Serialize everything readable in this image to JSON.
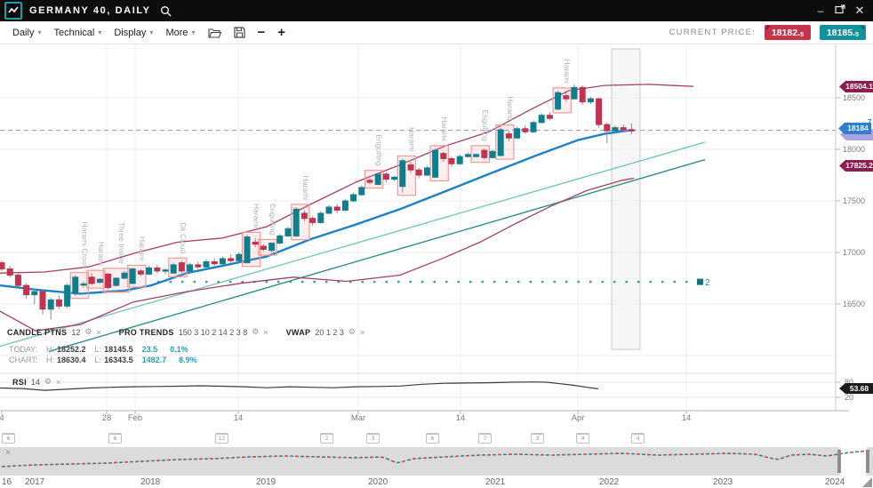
{
  "titlebar": {
    "title": "GERMANY 40, DAILY"
  },
  "toolbar": {
    "menus": [
      "Daily",
      "Technical",
      "Display",
      "More"
    ],
    "zoom_out": "−",
    "zoom_in": "+",
    "current_price_label": "CURRENT PRICE:",
    "sell": {
      "main": "18182.",
      "frac": "5"
    },
    "buy": {
      "main": "18185.",
      "frac": "5"
    }
  },
  "icons": {
    "gear": "⚙",
    "close": "×",
    "caret": "▾"
  },
  "indicators": [
    {
      "name": "CANDLE PTNS",
      "params": "12"
    },
    {
      "name": "PRO TRENDS",
      "params": "150 3 10 2 14 2 3 8"
    },
    {
      "name": "VWAP",
      "params": "20 1 2 3"
    }
  ],
  "stats": {
    "today_label": "TODAY:",
    "chart_label": "CHART:",
    "h_label": "H:",
    "l_label": "L:",
    "today": {
      "high": "18252.2",
      "low": "18145.5",
      "change": "23.5",
      "pct": "0.1%"
    },
    "chart": {
      "high": "18630.4",
      "low": "16343.5",
      "change": "1482.7",
      "pct": "8.9%"
    }
  },
  "rsi_panel": {
    "name": "RSI",
    "params": "14",
    "value_tag": "53.68",
    "levels": [
      "80",
      "20"
    ]
  },
  "price_tags": {
    "upper_band": "18504.1",
    "current": "18184",
    "current_frac": "7",
    "lower_band": "17825.2"
  },
  "chart_data": {
    "type": "candlestick",
    "symbol": "GERMANY 40",
    "timeframe": "DAILY",
    "price_axis": {
      "ticks": [
        18500,
        18000,
        17500,
        17000,
        16500
      ],
      "current_price_line": 18184.7
    },
    "x_ticks": [
      {
        "label": "4",
        "x": 2,
        "grid": false
      },
      {
        "label": "28",
        "x": 120,
        "grid": true
      },
      {
        "label": "Feb",
        "x": 152,
        "grid": true
      },
      {
        "label": "14",
        "x": 268,
        "grid": true
      },
      {
        "label": "Mar",
        "x": 403,
        "grid": true
      },
      {
        "label": "14",
        "x": 518,
        "grid": true
      },
      {
        "label": "Apr",
        "x": 650,
        "grid": true
      },
      {
        "label": "14",
        "x": 772,
        "grid": true
      }
    ],
    "candles": [
      [
        16900,
        16920,
        16820,
        16840
      ],
      [
        16840,
        16870,
        16760,
        16780
      ],
      [
        16780,
        16800,
        16660,
        16680
      ],
      [
        16680,
        16700,
        16550,
        16590
      ],
      [
        16590,
        16650,
        16500,
        16620
      ],
      [
        16620,
        16640,
        16400,
        16450
      ],
      [
        16450,
        16560,
        16350,
        16540
      ],
      [
        16540,
        16580,
        16450,
        16480
      ],
      [
        16480,
        16700,
        16460,
        16680
      ],
      [
        16600,
        16780,
        16580,
        16760
      ],
      [
        16690,
        16720,
        16660,
        16695
      ],
      [
        16760,
        16800,
        16680,
        16700
      ],
      [
        16710,
        16750,
        16700,
        16740
      ],
      [
        16790,
        16800,
        16640,
        16660
      ],
      [
        16680,
        16760,
        16670,
        16750
      ],
      [
        16750,
        16820,
        16740,
        16800
      ],
      [
        16700,
        16850,
        16690,
        16840
      ],
      [
        16820,
        16840,
        16770,
        16790
      ],
      [
        16790,
        16870,
        16780,
        16850
      ],
      [
        16850,
        16880,
        16800,
        16820
      ],
      [
        16820,
        16850,
        16790,
        16830
      ],
      [
        16800,
        16900,
        16790,
        16880
      ],
      [
        16900,
        16920,
        16800,
        16820
      ],
      [
        16820,
        16900,
        16810,
        16880
      ],
      [
        16880,
        16910,
        16840,
        16860
      ],
      [
        16860,
        16930,
        16850,
        16910
      ],
      [
        16910,
        16940,
        16870,
        16890
      ],
      [
        16890,
        16960,
        16880,
        16940
      ],
      [
        16940,
        16980,
        16900,
        16920
      ],
      [
        16920,
        17000,
        16910,
        16980
      ],
      [
        16900,
        17170,
        16890,
        17150
      ],
      [
        17100,
        17140,
        17050,
        17080
      ],
      [
        17060,
        17080,
        17010,
        17030
      ],
      [
        17020,
        17100,
        17000,
        17090
      ],
      [
        17090,
        17180,
        17080,
        17160
      ],
      [
        17160,
        17250,
        17150,
        17230
      ],
      [
        17160,
        17440,
        17150,
        17420
      ],
      [
        17380,
        17410,
        17300,
        17330
      ],
      [
        17330,
        17350,
        17260,
        17290
      ],
      [
        17290,
        17400,
        17280,
        17380
      ],
      [
        17380,
        17460,
        17370,
        17440
      ],
      [
        17440,
        17470,
        17380,
        17410
      ],
      [
        17410,
        17520,
        17400,
        17500
      ],
      [
        17500,
        17580,
        17490,
        17560
      ],
      [
        17560,
        17650,
        17550,
        17630
      ],
      [
        17700,
        17720,
        17660,
        17680
      ],
      [
        17660,
        17770,
        17650,
        17760
      ],
      [
        17760,
        17780,
        17680,
        17710
      ],
      [
        17710,
        17740,
        17690,
        17730
      ],
      [
        17640,
        17910,
        17580,
        17890
      ],
      [
        17850,
        17880,
        17770,
        17800
      ],
      [
        17800,
        17820,
        17720,
        17750
      ],
      [
        17750,
        17840,
        17740,
        17820
      ],
      [
        17730,
        18010,
        17720,
        17990
      ],
      [
        17960,
        17980,
        17880,
        17910
      ],
      [
        17910,
        17930,
        17830,
        17860
      ],
      [
        17860,
        17950,
        17850,
        17930
      ],
      [
        17930,
        17970,
        17920,
        17950
      ],
      [
        17930,
        17960,
        17920,
        17950
      ],
      [
        17990,
        18010,
        17900,
        17920
      ],
      [
        17920,
        18000,
        17910,
        17980
      ],
      [
        17940,
        18210,
        17930,
        18190
      ],
      [
        18150,
        18180,
        18080,
        18110
      ],
      [
        18110,
        18220,
        18100,
        18200
      ],
      [
        18200,
        18230,
        18150,
        18170
      ],
      [
        18170,
        18280,
        18160,
        18260
      ],
      [
        18260,
        18350,
        18250,
        18330
      ],
      [
        18330,
        18360,
        18280,
        18300
      ],
      [
        18390,
        18570,
        18380,
        18550
      ],
      [
        18520,
        18550,
        18460,
        18490
      ],
      [
        18490,
        18630,
        18480,
        18600
      ],
      [
        18600,
        18620,
        18430,
        18460
      ],
      [
        18460,
        18510,
        18440,
        18490
      ],
      [
        18490,
        18500,
        18210,
        18240
      ],
      [
        18240,
        18260,
        18060,
        18180
      ],
      [
        18180,
        18230,
        18150,
        18210
      ],
      [
        18210,
        18240,
        18170,
        18190
      ],
      [
        18190,
        18252,
        18146,
        18185
      ]
    ],
    "patterns": [
      {
        "label": "Harami Cross",
        "from": 9,
        "to": 10
      },
      {
        "label": "Harami",
        "from": 11,
        "to": 12
      },
      {
        "label": "Three Inside",
        "from": 13,
        "to": 15
      },
      {
        "label": "Harami",
        "from": 16,
        "to": 17
      },
      {
        "label": "Dk Cloud",
        "from": 21,
        "to": 22
      },
      {
        "label": "Harami",
        "from": 30,
        "to": 31
      },
      {
        "label": "Engulfing",
        "from": 32,
        "to": 33
      },
      {
        "label": "Harami",
        "from": 36,
        "to": 37
      },
      {
        "label": "Engulfing",
        "from": 45,
        "to": 46
      },
      {
        "label": "Harami",
        "from": 49,
        "to": 50
      },
      {
        "label": "Harami",
        "from": 53,
        "to": 54
      },
      {
        "label": "Engulfing",
        "from": 58,
        "to": 59
      },
      {
        "label": "Harami",
        "from": 61,
        "to": 62
      },
      {
        "label": "Harami",
        "from": 68,
        "to": 69
      }
    ],
    "overlays": {
      "blue_ma": [
        [
          0,
          16680
        ],
        [
          40,
          16640
        ],
        [
          90,
          16600
        ],
        [
          140,
          16630
        ],
        [
          170,
          16680
        ],
        [
          210,
          16800
        ],
        [
          250,
          16870
        ],
        [
          300,
          16960
        ],
        [
          350,
          17130
        ],
        [
          400,
          17270
        ],
        [
          450,
          17420
        ],
        [
          500,
          17590
        ],
        [
          550,
          17760
        ],
        [
          600,
          17930
        ],
        [
          650,
          18090
        ],
        [
          680,
          18150
        ],
        [
          712,
          18190
        ]
      ],
      "upper_band": [
        [
          0,
          16800
        ],
        [
          50,
          16810
        ],
        [
          100,
          16860
        ],
        [
          150,
          16990
        ],
        [
          200,
          17100
        ],
        [
          250,
          17140
        ],
        [
          300,
          17250
        ],
        [
          350,
          17470
        ],
        [
          400,
          17680
        ],
        [
          450,
          17850
        ],
        [
          500,
          18030
        ],
        [
          550,
          18170
        ],
        [
          600,
          18400
        ],
        [
          640,
          18570
        ],
        [
          680,
          18620
        ],
        [
          730,
          18630
        ],
        [
          780,
          18610
        ]
      ],
      "lower_band": [
        [
          0,
          16430
        ],
        [
          40,
          16240
        ],
        [
          90,
          16300
        ],
        [
          150,
          16520
        ],
        [
          210,
          16620
        ],
        [
          270,
          16700
        ],
        [
          330,
          16760
        ],
        [
          390,
          16720
        ],
        [
          450,
          16780
        ],
        [
          500,
          16950
        ],
        [
          540,
          17100
        ],
        [
          580,
          17280
        ],
        [
          620,
          17450
        ],
        [
          660,
          17600
        ],
        [
          700,
          17700
        ],
        [
          713,
          17720
        ]
      ],
      "trend_lines": [
        {
          "shade": "light",
          "points": [
            [
              0,
              16090
            ],
            [
              793,
              18070
            ]
          ]
        },
        {
          "shade": "dark",
          "points": [
            [
              55,
              16040
            ],
            [
              793,
              17900
            ]
          ]
        }
      ],
      "vwap": {
        "level": 16715,
        "x_from": 177,
        "x_to": 780,
        "marker_label": "2"
      }
    },
    "highlight_region": {
      "x_from": 688,
      "x_to": 720
    },
    "rsi": {
      "period": 14,
      "last": 53.68,
      "levels": [
        80,
        20
      ],
      "points": [
        [
          0,
          57
        ],
        [
          25,
          55
        ],
        [
          50,
          48
        ],
        [
          75,
          52
        ],
        [
          100,
          57
        ],
        [
          125,
          60
        ],
        [
          150,
          62
        ],
        [
          175,
          63
        ],
        [
          200,
          64
        ],
        [
          225,
          66
        ],
        [
          250,
          64
        ],
        [
          275,
          62
        ],
        [
          300,
          58
        ],
        [
          325,
          62
        ],
        [
          350,
          60
        ],
        [
          375,
          58
        ],
        [
          400,
          62
        ],
        [
          425,
          63
        ],
        [
          450,
          65
        ],
        [
          475,
          72
        ],
        [
          500,
          76
        ],
        [
          525,
          77
        ],
        [
          550,
          78
        ],
        [
          575,
          80
        ],
        [
          600,
          81
        ],
        [
          615,
          80
        ],
        [
          630,
          74
        ],
        [
          645,
          68
        ],
        [
          660,
          60
        ],
        [
          673,
          54
        ]
      ]
    },
    "events": [
      [
        8,
        "6"
      ],
      [
        128,
        "6"
      ],
      [
        248,
        "12"
      ],
      [
        366,
        "2"
      ],
      [
        418,
        "3"
      ],
      [
        485,
        "6"
      ],
      [
        544,
        "7"
      ],
      [
        603,
        "3"
      ],
      [
        654,
        "4"
      ],
      [
        716,
        "4"
      ]
    ],
    "navigator": {
      "years": [
        [
          "16",
          2
        ],
        [
          "2017",
          28
        ],
        [
          "2018",
          158
        ],
        [
          "2019",
          288
        ],
        [
          "2020",
          414
        ],
        [
          "2021",
          546
        ],
        [
          "2022",
          674
        ],
        [
          "2023",
          802
        ],
        [
          "2024",
          928
        ]
      ],
      "points": [
        [
          0,
          525
        ],
        [
          40,
          523
        ],
        [
          80,
          522
        ],
        [
          120,
          521
        ],
        [
          160,
          519
        ],
        [
          200,
          517
        ],
        [
          240,
          516
        ],
        [
          280,
          514
        ],
        [
          320,
          513
        ],
        [
          360,
          514
        ],
        [
          400,
          515
        ],
        [
          430,
          514
        ],
        [
          447,
          521
        ],
        [
          465,
          516
        ],
        [
          500,
          514
        ],
        [
          540,
          512
        ],
        [
          580,
          511
        ],
        [
          620,
          512
        ],
        [
          660,
          511
        ],
        [
          700,
          510
        ],
        [
          740,
          512
        ],
        [
          780,
          511
        ],
        [
          820,
          510
        ],
        [
          850,
          511
        ],
        [
          865,
          515
        ],
        [
          875,
          517
        ],
        [
          890,
          512
        ],
        [
          910,
          511
        ],
        [
          930,
          513
        ],
        [
          943,
          511
        ],
        [
          955,
          509
        ],
        [
          968,
          508
        ],
        [
          982,
          506
        ]
      ],
      "selection": [
        945,
        975
      ]
    }
  }
}
